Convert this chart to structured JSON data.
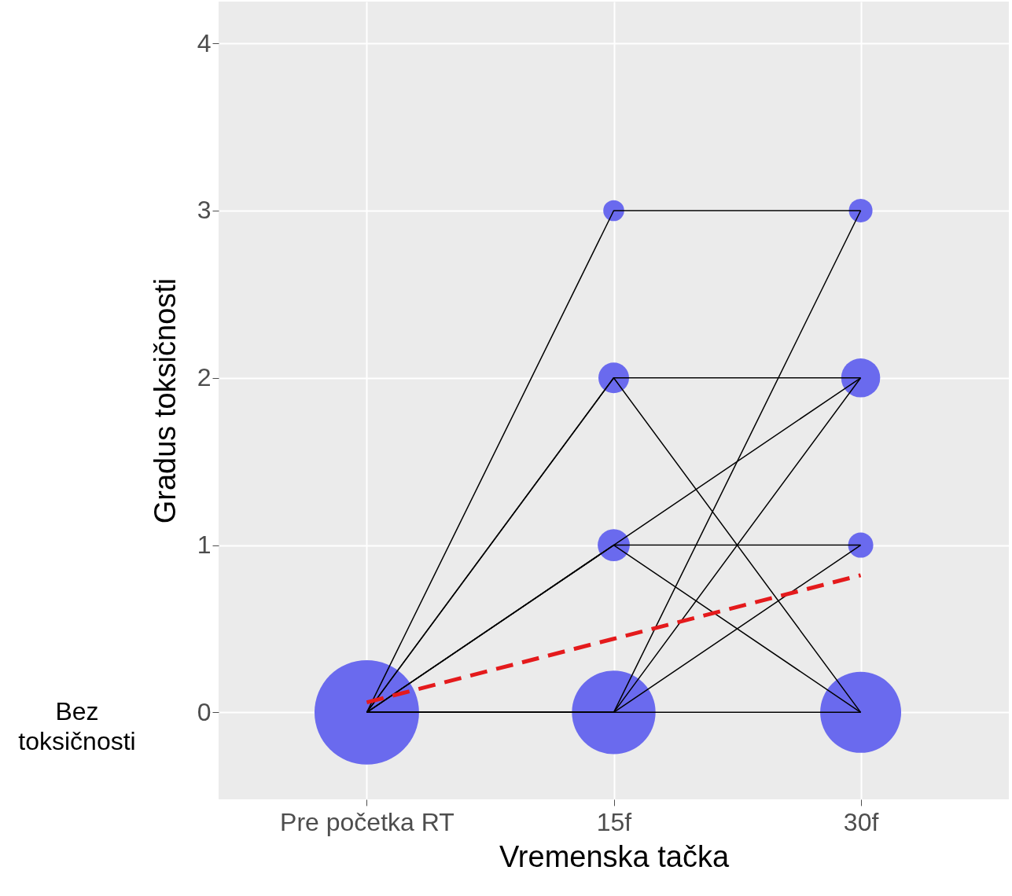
{
  "chart_data": {
    "type": "bubble",
    "xlabel": "Vremenska tačka",
    "ylabel": "Gradus toksičnosti",
    "categories": [
      "Pre početka RT",
      "15f",
      "30f"
    ],
    "ylim": [
      -0.52,
      4.25
    ],
    "yticks": [
      0,
      1,
      2,
      3,
      4
    ],
    "grid": true,
    "annotations": [
      "Bez toksičnosti"
    ],
    "series": [
      {
        "type": "bubble",
        "color": "#6a6aee",
        "x": [
          "Pre početka RT",
          "15f",
          "15f",
          "15f",
          "15f",
          "30f",
          "30f",
          "30f",
          "30f"
        ],
        "values": [
          0,
          3,
          2,
          1,
          0,
          3,
          2,
          1,
          0
        ],
        "sizes": [
          1,
          0.04,
          0.086,
          0.094,
          0.64,
          0.051,
          0.139,
          0.058,
          0.6
        ]
      },
      {
        "type": "line",
        "color": "#000000",
        "values": [
          0,
          3,
          3
        ]
      },
      {
        "type": "line",
        "color": "#000000",
        "values": [
          0,
          2,
          2
        ]
      },
      {
        "type": "line",
        "color": "#000000",
        "values": [
          0,
          2,
          0
        ]
      },
      {
        "type": "line",
        "color": "#000000",
        "values": [
          0,
          1,
          2
        ]
      },
      {
        "type": "line",
        "color": "#000000",
        "values": [
          0,
          1,
          1
        ]
      },
      {
        "type": "line",
        "color": "#000000",
        "values": [
          0,
          1,
          0
        ]
      },
      {
        "type": "line",
        "color": "#000000",
        "values": [
          0,
          0,
          0
        ]
      },
      {
        "type": "line",
        "color": "#000000",
        "values": [
          0,
          0,
          3
        ]
      },
      {
        "type": "line",
        "color": "#000000",
        "values": [
          0,
          0,
          2
        ]
      },
      {
        "type": "line",
        "color": "#000000",
        "values": [
          0,
          0,
          1
        ]
      },
      {
        "type": "line",
        "color": "#e41a1c",
        "line_style": "dashed",
        "values": [
          0.06,
          0.44,
          0.82
        ]
      }
    ]
  }
}
